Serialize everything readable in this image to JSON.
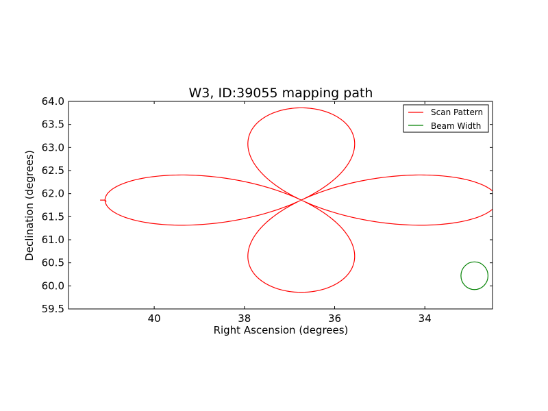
{
  "chart_data": {
    "type": "line",
    "title": "W3, ID:39055 mapping path",
    "xlabel": "Right Ascension (degrees)",
    "ylabel": "Declination (degrees)",
    "xlim": [
      41.9,
      32.5
    ],
    "ylim": [
      59.5,
      64.0
    ],
    "x_ticks": [
      40,
      38,
      36,
      34
    ],
    "x_tick_labels": [
      "40",
      "38",
      "36",
      "34"
    ],
    "y_ticks": [
      59.5,
      60.0,
      60.5,
      61.0,
      61.5,
      62.0,
      62.5,
      63.0,
      63.5,
      64.0
    ],
    "y_tick_labels": [
      "59.5",
      "60.0",
      "60.5",
      "61.0",
      "61.5",
      "62.0",
      "62.5",
      "63.0",
      "63.5",
      "64.0"
    ],
    "grid": false,
    "legend_position": "top-right",
    "series": [
      {
        "name": "Scan Pattern",
        "color": "#ff0000",
        "kind": "rose",
        "center": [
          36.74,
          61.86
        ],
        "ra_amplitude": 4.35,
        "dec_amplitude": 2.0,
        "start_point": [
          41.2,
          61.86
        ],
        "end_point": [
          41.06,
          61.83
        ]
      },
      {
        "name": "Beam Width",
        "color": "#008000",
        "kind": "circle",
        "center": [
          32.9,
          60.22
        ],
        "radius": 0.3
      }
    ]
  }
}
